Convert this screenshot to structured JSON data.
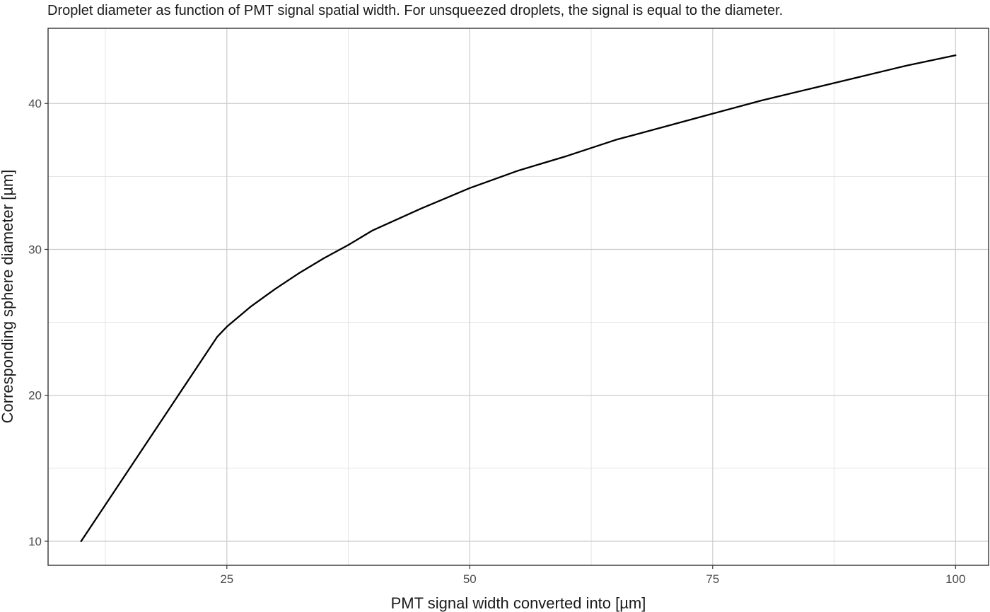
{
  "chart_data": {
    "type": "line",
    "title": "Droplet diameter as function of PMT signal spatial width. For unsqueezed droplets, the signal is equal to the diameter.",
    "xlabel": "PMT signal width converted into [µm]",
    "ylabel": "Corresponding sphere diameter [µm]",
    "xlim": [
      6.6,
      103.4
    ],
    "ylim": [
      8.35,
      45.15
    ],
    "x_ticks": [
      25,
      50,
      75,
      100
    ],
    "y_ticks": [
      10,
      20,
      30,
      40
    ],
    "x_minor_ticks": [
      12.5,
      37.5,
      62.5,
      87.5
    ],
    "y_minor_ticks": [
      15,
      25,
      35
    ],
    "grid": true,
    "legend": "none",
    "series": [
      {
        "color": "#000000",
        "x": [
          10,
          12,
          14,
          16,
          18,
          20,
          22,
          24,
          25,
          27.5,
          30,
          32.5,
          35,
          37.5,
          40,
          45,
          50,
          55,
          60,
          65,
          70,
          75,
          80,
          85,
          90,
          95,
          100
        ],
        "y": [
          10.0,
          12.0,
          14.0,
          16.0,
          18.0,
          20.0,
          22.0,
          24.0,
          24.7,
          26.1,
          27.3,
          28.4,
          29.4,
          30.3,
          31.3,
          32.8,
          34.2,
          35.4,
          36.4,
          37.5,
          38.4,
          39.3,
          40.2,
          41.0,
          41.8,
          42.6,
          43.3
        ]
      }
    ]
  }
}
